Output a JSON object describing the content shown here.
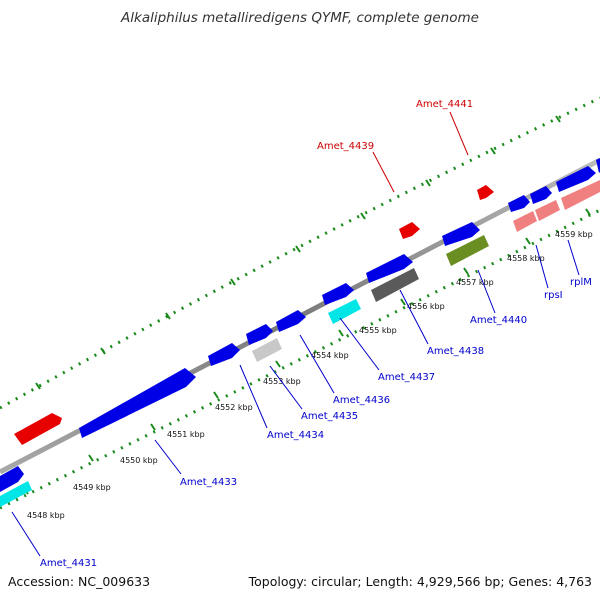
{
  "title": "Alkaliphilus metalliredigens QYMF, complete genome",
  "accession": "Accession: NC_009633",
  "summary": "Topology: circular; Length: 4,929,566 bp; Genes: 4,763",
  "colors": {
    "backbone": "#8c8c8c",
    "ticks": "#1a8a1a",
    "forward_gene": "#0000e6",
    "reverse_gene_red": "#e60000",
    "label_blue": "#0000cc",
    "label_red": "#cc0000",
    "cyan": "#00e5e5",
    "light_gray": "#c8c8c8",
    "dark_gray": "#5a5a5a",
    "olive": "#6b8e23",
    "pink": "#f08080"
  },
  "kbp_labels": [
    "4548 kbp",
    "4549 kbp",
    "4550 kbp",
    "4551 kbp",
    "4552 kbp",
    "4553 kbp",
    "4554 kbp",
    "4555 kbp",
    "4556 kbp",
    "4557 kbp",
    "4558 kbp",
    "4559 kbp"
  ],
  "gene_labels": [
    "Amet_4431",
    "Amet_4433",
    "Amet_4434",
    "Amet_4435",
    "Amet_4436",
    "Amet_4437",
    "Amet_4438",
    "Amet_4440",
    "rpsI",
    "rplM",
    "Amet_4439",
    "Amet_4441"
  ]
}
